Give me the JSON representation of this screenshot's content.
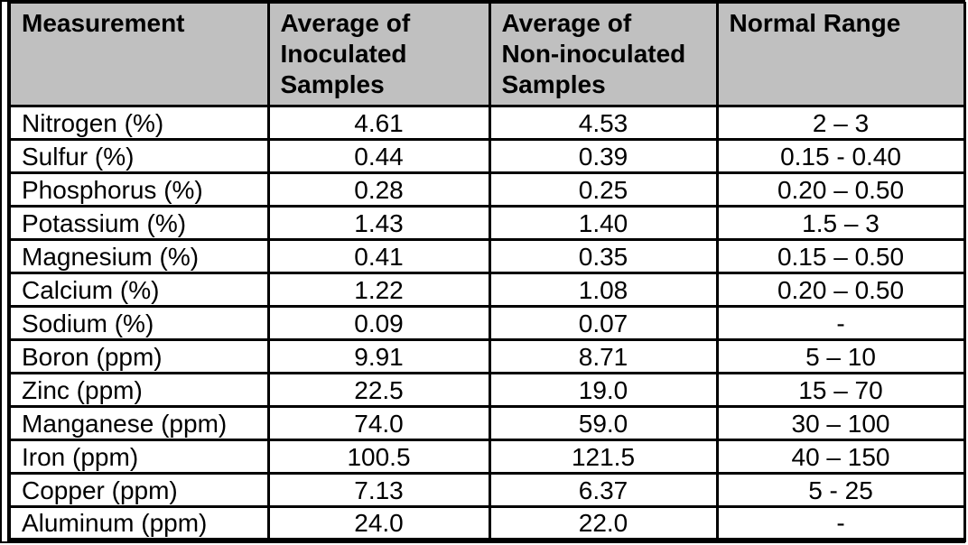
{
  "document": {
    "table": {
      "headers": [
        {
          "id": "measurement",
          "label": "Measurement"
        },
        {
          "id": "inoculated",
          "label": "Average of\nInoculated\nSamples"
        },
        {
          "id": "non_inoculated",
          "label": "Average of\nNon-inoculated\nSamples"
        },
        {
          "id": "normal_range",
          "label": "Normal Range"
        }
      ],
      "rows": [
        [
          "Nitrogen (%)",
          "4.61",
          "4.53",
          "2 – 3"
        ],
        [
          "Sulfur (%)",
          "0.44",
          "0.39",
          "0.15 - 0.40"
        ],
        [
          "Phosphorus (%)",
          "0.28",
          "0.25",
          "0.20 – 0.50"
        ],
        [
          "Potassium (%)",
          "1.43",
          "1.40",
          "1.5 – 3"
        ],
        [
          "Magnesium (%)",
          "0.41",
          "0.35",
          "0.15 – 0.50"
        ],
        [
          "Calcium (%)",
          "1.22",
          "1.08",
          "0.20 – 0.50"
        ],
        [
          "Sodium (%)",
          "0.09",
          "0.07",
          "-"
        ],
        [
          "Boron (ppm)",
          "9.91",
          "8.71",
          "5 – 10"
        ],
        [
          "Zinc (ppm)",
          "22.5",
          "19.0",
          "15 – 70"
        ],
        [
          "Manganese (ppm)",
          "74.0",
          "59.0",
          "30 – 100"
        ],
        [
          "Iron (ppm)",
          "100.5",
          "121.5",
          "40 – 150"
        ],
        [
          "Copper (ppm)",
          "7.13",
          "6.37",
          "5 - 25"
        ],
        [
          "Aluminum (ppm)",
          "24.0",
          "22.0",
          "-"
        ]
      ]
    },
    "colors": {
      "header_bg": "#c0c0c0",
      "border": "#000000",
      "text": "#000000",
      "page_bg": "#ffffff"
    }
  }
}
